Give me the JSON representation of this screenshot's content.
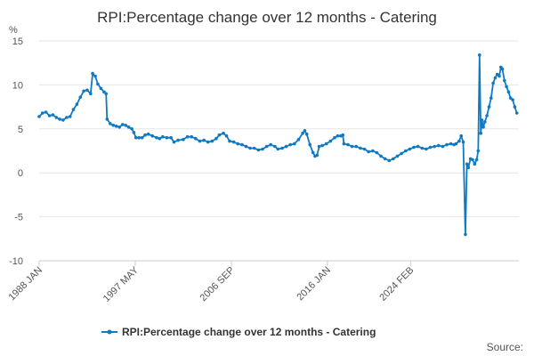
{
  "chart_data": {
    "type": "line",
    "title": "RPI:Percentage change over 12 months - Catering",
    "ylabel": "%",
    "xlabel": "",
    "ylim": [
      -10,
      15
    ],
    "y_ticks": [
      15,
      10,
      5,
      0,
      -5,
      -10
    ],
    "x_tick_labels": [
      {
        "label": "1988 JAN",
        "date": 1988.0
      },
      {
        "label": "1997 MAY",
        "date": 1997.33
      },
      {
        "label": "2006 SEP",
        "date": 2006.67
      },
      {
        "label": "2016 JAN",
        "date": 2016.0
      },
      {
        "label": "2024 FEB",
        "date": 2024.08
      }
    ],
    "grid": "horizontal",
    "legend_position": "bottom",
    "color": "#0f7ac4",
    "series": [
      {
        "name": "RPI:Percentage change over 12 months - Catering",
        "points": [
          [
            1988.0,
            6.4
          ],
          [
            1988.33,
            6.8
          ],
          [
            1988.67,
            6.9
          ],
          [
            1989.0,
            6.5
          ],
          [
            1989.33,
            6.6
          ],
          [
            1989.67,
            6.3
          ],
          [
            1990.0,
            6.1
          ],
          [
            1990.33,
            6.0
          ],
          [
            1990.67,
            6.3
          ],
          [
            1991.0,
            6.4
          ],
          [
            1991.33,
            7.2
          ],
          [
            1991.67,
            7.8
          ],
          [
            1992.0,
            8.6
          ],
          [
            1992.33,
            9.3
          ],
          [
            1992.67,
            9.4
          ],
          [
            1993.0,
            9.0
          ],
          [
            1993.2,
            11.3
          ],
          [
            1993.45,
            11.0
          ],
          [
            1993.7,
            10.1
          ],
          [
            1994.0,
            9.6
          ],
          [
            1994.3,
            9.2
          ],
          [
            1994.5,
            9.0
          ],
          [
            1994.6,
            6.1
          ],
          [
            1994.9,
            5.6
          ],
          [
            1995.2,
            5.4
          ],
          [
            1995.5,
            5.3
          ],
          [
            1995.8,
            5.2
          ],
          [
            1996.1,
            5.5
          ],
          [
            1996.4,
            5.4
          ],
          [
            1996.7,
            5.2
          ],
          [
            1997.0,
            5.0
          ],
          [
            1997.2,
            4.6
          ],
          [
            1997.4,
            4.0
          ],
          [
            1997.7,
            4.0
          ],
          [
            1998.0,
            4.0
          ],
          [
            1998.3,
            4.3
          ],
          [
            1998.6,
            4.4
          ],
          [
            1999.0,
            4.2
          ],
          [
            1999.4,
            4.0
          ],
          [
            1999.7,
            3.9
          ],
          [
            2000.0,
            4.1
          ],
          [
            2000.4,
            4.0
          ],
          [
            2000.8,
            4.0
          ],
          [
            2001.1,
            3.5
          ],
          [
            2001.5,
            3.7
          ],
          [
            2002.0,
            3.8
          ],
          [
            2002.4,
            4.1
          ],
          [
            2002.8,
            4.1
          ],
          [
            2003.2,
            3.9
          ],
          [
            2003.6,
            3.6
          ],
          [
            2004.0,
            3.7
          ],
          [
            2004.4,
            3.5
          ],
          [
            2004.8,
            3.6
          ],
          [
            2005.2,
            3.9
          ],
          [
            2005.5,
            4.3
          ],
          [
            2005.9,
            4.5
          ],
          [
            2006.2,
            4.2
          ],
          [
            2006.5,
            3.6
          ],
          [
            2006.9,
            3.5
          ],
          [
            2007.3,
            3.3
          ],
          [
            2007.7,
            3.2
          ],
          [
            2008.1,
            3.0
          ],
          [
            2008.5,
            2.8
          ],
          [
            2008.9,
            2.8
          ],
          [
            2009.3,
            2.6
          ],
          [
            2009.7,
            2.7
          ],
          [
            2010.1,
            3.0
          ],
          [
            2010.5,
            3.2
          ],
          [
            2010.9,
            3.0
          ],
          [
            2011.2,
            2.7
          ],
          [
            2011.6,
            2.8
          ],
          [
            2012.0,
            3.0
          ],
          [
            2012.4,
            3.2
          ],
          [
            2012.8,
            3.3
          ],
          [
            2013.2,
            3.8
          ],
          [
            2013.6,
            4.5
          ],
          [
            2013.8,
            4.8
          ],
          [
            2014.0,
            4.4
          ],
          [
            2014.3,
            3.2
          ],
          [
            2014.6,
            2.3
          ],
          [
            2014.8,
            1.9
          ],
          [
            2015.0,
            2.0
          ],
          [
            2015.2,
            3.0
          ],
          [
            2015.5,
            3.1
          ],
          [
            2015.9,
            3.3
          ],
          [
            2016.3,
            3.6
          ],
          [
            2016.7,
            4.0
          ],
          [
            2017.0,
            4.2
          ],
          [
            2017.3,
            4.2
          ],
          [
            2017.5,
            4.3
          ],
          [
            2017.6,
            3.3
          ],
          [
            2018.0,
            3.2
          ],
          [
            2018.4,
            3.0
          ],
          [
            2018.8,
            3.0
          ],
          [
            2019.2,
            2.8
          ],
          [
            2019.6,
            2.7
          ],
          [
            2020.0,
            2.4
          ],
          [
            2020.4,
            2.5
          ],
          [
            2020.8,
            2.3
          ],
          [
            2021.2,
            1.9
          ],
          [
            2021.6,
            1.6
          ],
          [
            2022.0,
            1.4
          ],
          [
            2022.4,
            1.6
          ],
          [
            2022.8,
            1.9
          ],
          [
            2023.2,
            2.2
          ],
          [
            2023.6,
            2.5
          ],
          [
            2024.0,
            2.7
          ],
          [
            2024.4,
            2.9
          ],
          [
            2024.8,
            3.0
          ],
          [
            2025.2,
            2.8
          ],
          [
            2025.6,
            2.7
          ],
          [
            2026.0,
            2.9
          ],
          [
            2026.4,
            3.0
          ],
          [
            2026.8,
            3.1
          ],
          [
            2027.2,
            3.0
          ],
          [
            2027.6,
            3.2
          ],
          [
            2028.0,
            3.3
          ],
          [
            2028.3,
            3.2
          ],
          [
            2028.5,
            3.3
          ],
          [
            2028.8,
            3.6
          ],
          [
            2029.0,
            4.2
          ],
          [
            2029.2,
            3.5
          ],
          [
            2029.4,
            -7.0
          ],
          [
            2029.55,
            1.0
          ],
          [
            2029.7,
            0.6
          ],
          [
            2029.9,
            1.6
          ],
          [
            2030.1,
            1.5
          ],
          [
            2030.3,
            1.0
          ],
          [
            2030.5,
            1.5
          ],
          [
            2030.65,
            2.5
          ],
          [
            2030.78,
            13.4
          ],
          [
            2030.9,
            4.5
          ],
          [
            2031.0,
            6.0
          ],
          [
            2031.15,
            5.2
          ],
          [
            2031.3,
            5.8
          ],
          [
            2031.5,
            6.5
          ],
          [
            2031.7,
            7.5
          ],
          [
            2031.9,
            8.5
          ],
          [
            2032.1,
            10.2
          ],
          [
            2032.3,
            10.8
          ],
          [
            2032.5,
            11.2
          ],
          [
            2032.7,
            11.0
          ],
          [
            2032.85,
            12.0
          ],
          [
            2033.0,
            11.8
          ],
          [
            2033.2,
            10.5
          ],
          [
            2033.4,
            9.8
          ],
          [
            2033.6,
            9.2
          ],
          [
            2033.8,
            8.5
          ],
          [
            2034.0,
            8.3
          ],
          [
            2034.2,
            7.5
          ],
          [
            2034.4,
            6.8
          ]
        ]
      }
    ],
    "source": "Source:"
  }
}
